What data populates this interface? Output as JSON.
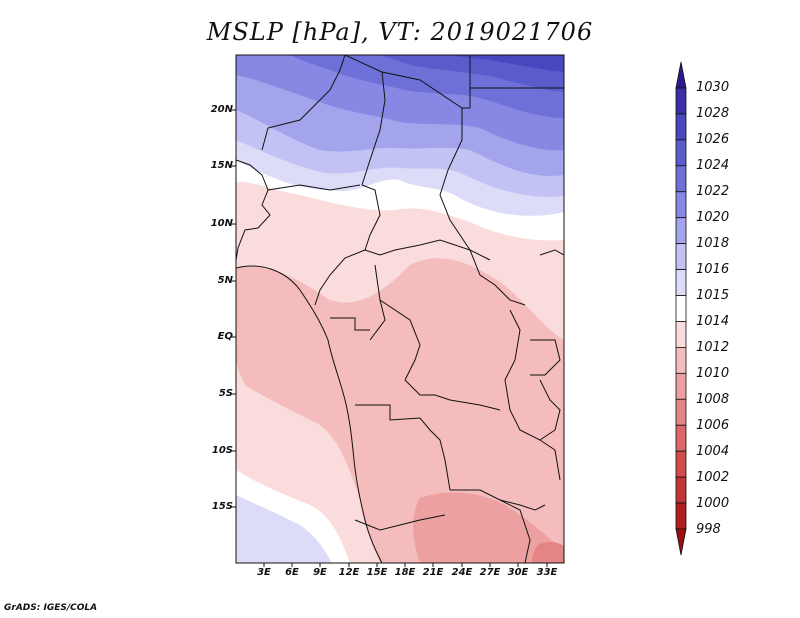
{
  "title": "MSLP [hPa], VT: 2019021706",
  "lat_labels": [
    "20N",
    "15N",
    "10N",
    "5N",
    "EQ",
    "5S",
    "10S",
    "15S"
  ],
  "lon_labels": [
    "3E",
    "6E",
    "9E",
    "12E",
    "15E",
    "18E",
    "21E",
    "24E",
    "27E",
    "30E",
    "33E"
  ],
  "colorbar": {
    "levels": [
      "1030",
      "1028",
      "1026",
      "1024",
      "1022",
      "1020",
      "1018",
      "1016",
      "1015",
      "1014",
      "1012",
      "1010",
      "1008",
      "1006",
      "1004",
      "1002",
      "1000",
      "998"
    ],
    "colors": [
      "#2a1a8c",
      "#3a2fa8",
      "#4a46bd",
      "#5a5ccc",
      "#6e70d8",
      "#8888e4",
      "#a3a4ec",
      "#c2c2f4",
      "#dcdcf8",
      "#ffffff",
      "#fbdcdc",
      "#f4bcbc",
      "#eca0a0",
      "#e48484",
      "#dc6868",
      "#d24c4c",
      "#c43434",
      "#b41e1e",
      "#9a1010"
    ]
  },
  "credit": "GrADS: IGES/COLA"
}
